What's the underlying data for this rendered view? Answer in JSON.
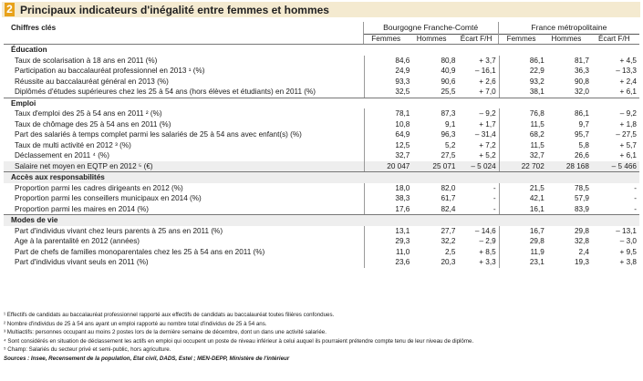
{
  "title": {
    "number": "2",
    "text": "Principaux indicateurs d'inégalité entre femmes et hommes"
  },
  "header": {
    "col_label": "Chiffres clés",
    "region1": "Bourgogne Franche-Comté",
    "region2": "France métropolitaine",
    "sub": [
      "Femmes",
      "Hommes",
      "Écart F/H",
      "Femmes",
      "Hommes",
      "Écart F/H"
    ]
  },
  "sections": [
    {
      "name": "Éducation",
      "rows": [
        {
          "label": "Taux de scolarisation à 18 ans en 2011 (%)",
          "v": [
            "84,6",
            "80,8",
            "+ 3,7",
            "86,1",
            "81,7",
            "+ 4,5"
          ]
        },
        {
          "label": "Participation au baccalauréat professionnel en 2013 ¹ (%)",
          "v": [
            "24,9",
            "40,9",
            "– 16,1",
            "22,9",
            "36,3",
            "– 13,3"
          ]
        },
        {
          "label": "Réussite au baccalauréat général en 2013 (%)",
          "v": [
            "93,3",
            "90,6",
            "+ 2,6",
            "93,2",
            "90,8",
            "+ 2,4"
          ]
        },
        {
          "label": "Diplômés d'études supérieures chez les 25 à 54 ans (hors élèves et étudiants) en 2011 (%)",
          "v": [
            "32,5",
            "25,5",
            "+ 7,0",
            "38,1",
            "32,0",
            "+ 6,1"
          ]
        }
      ]
    },
    {
      "name": "Emploi",
      "rows": [
        {
          "label": "Taux d'emploi des 25 à 54 ans en 2011 ² (%)",
          "v": [
            "78,1",
            "87,3",
            "– 9,2",
            "76,8",
            "86,1",
            "– 9,2"
          ]
        },
        {
          "label": "Taux de chômage des 25 à 54 ans en 2011 (%)",
          "v": [
            "10,8",
            "9,1",
            "+ 1,7",
            "11,5",
            "9,7",
            "+ 1,8"
          ]
        },
        {
          "label": "Part des salariés à temps complet parmi les salariés de 25 à 54 ans avec enfant(s) (%)",
          "v": [
            "64,9",
            "96,3",
            "– 31,4",
            "68,2",
            "95,7",
            "– 27,5"
          ]
        },
        {
          "label": "Taux de multi activité en 2012 ³ (%)",
          "v": [
            "12,5",
            "5,2",
            "+ 7,2",
            "11,5",
            "5,8",
            "+ 5,7"
          ]
        },
        {
          "label": "Déclassement en 2011 ⁴ (%)",
          "v": [
            "32,7",
            "27,5",
            "+ 5,2",
            "32,7",
            "26,6",
            "+ 6,1"
          ]
        },
        {
          "label": "Salaire net moyen en EQTP en 2012 ⁵ (€)",
          "v": [
            "20 047",
            "25 071",
            "– 5 024",
            "22 702",
            "28 168",
            "– 5 466"
          ],
          "shade": true
        }
      ]
    },
    {
      "name": "Accès aux responsabilités",
      "rows": [
        {
          "label": "Proportion parmi les cadres dirigeants en 2012 (%)",
          "v": [
            "18,0",
            "82,0",
            "-",
            "21,5",
            "78,5",
            "-"
          ]
        },
        {
          "label": "Proportion parmi les conseillers municipaux en 2014 (%)",
          "v": [
            "38,3",
            "61,7",
            "-",
            "42,1",
            "57,9",
            "-"
          ]
        },
        {
          "label": "Proportion parmi les maires en 2014 (%)",
          "v": [
            "17,6",
            "82,4",
            "-",
            "16,1",
            "83,9",
            "-"
          ]
        }
      ]
    },
    {
      "name": "Modes de vie",
      "rows": [
        {
          "label": "Part d'individus vivant chez leurs parents à 25 ans en 2011 (%)",
          "v": [
            "13,1",
            "27,7",
            "– 14,6",
            "16,7",
            "29,8",
            "– 13,1"
          ]
        },
        {
          "label": "Age à la parentalité en 2012 (années)",
          "v": [
            "29,3",
            "32,2",
            "– 2,9",
            "29,8",
            "32,8",
            "– 3,0"
          ]
        },
        {
          "label": "Part de chefs de familles monoparentales chez les 25 à 54 ans en 2011 (%)",
          "v": [
            "11,0",
            "2,5",
            "+ 8,5",
            "11,9",
            "2,4",
            "+ 9,5"
          ]
        },
        {
          "label": "Part d'individus vivant seuls en 2011 (%)",
          "v": [
            "23,6",
            "20,3",
            "+ 3,3",
            "23,1",
            "19,3",
            "+ 3,8"
          ]
        }
      ]
    }
  ],
  "notes": [
    "¹ Effectifs de candidats au baccalauréat professionnel rapporté aux effectifs de candidats au baccalauréat toutes filières confondues.",
    "² Nombre d'individus de 25 à 54 ans ayant un emploi rapporté au nombre total d'individus de 25 à 54 ans.",
    "³ Multiactifs: personnes occupant au moins 2 postes lors de la dernière semaine de décembre, dont un dans une activité salariée.",
    "⁴ Sont considérés en situation de déclassement les actifs en emploi qui occupent un poste de niveau inférieur à celui auquel ils pourraient prétendre compte tenu de leur niveau de diplôme.",
    "⁵ Champ: Salariés du secteur privé et semi-public, hors agriculture."
  ],
  "sources": "Sources : Insee, Recensement de la population, Etat civil, DADS, Estel ; MEN-DEPP, Ministère de l'intérieur"
}
